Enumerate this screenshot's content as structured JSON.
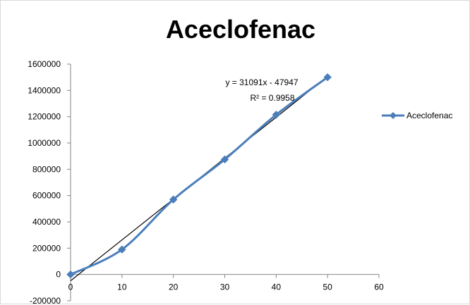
{
  "chart_data": {
    "type": "scatter",
    "title": "Aceclofenac",
    "xlabel": "",
    "ylabel": "",
    "xlim": [
      0,
      60
    ],
    "ylim": [
      -200000,
      1600000
    ],
    "xticks": [
      0,
      10,
      20,
      30,
      40,
      50,
      60
    ],
    "yticks": [
      -200000,
      0,
      200000,
      400000,
      600000,
      800000,
      1000000,
      1200000,
      1400000,
      1600000
    ],
    "grid": false,
    "legend_position": "right",
    "series": [
      {
        "name": "Aceclofenac",
        "color": "#4a7ebb",
        "marker": "diamond",
        "line": "smooth",
        "x": [
          0,
          10,
          20,
          30,
          40,
          50
        ],
        "y": [
          0,
          190000,
          570000,
          875000,
          1215000,
          1500000
        ]
      }
    ],
    "trendline": {
      "type": "linear",
      "color": "#000000",
      "slope": 31091,
      "intercept": -47947,
      "x_range": [
        0,
        50
      ],
      "equation": "y = 31091x - 47947",
      "r_squared_label": "R² = 0.9958"
    }
  }
}
